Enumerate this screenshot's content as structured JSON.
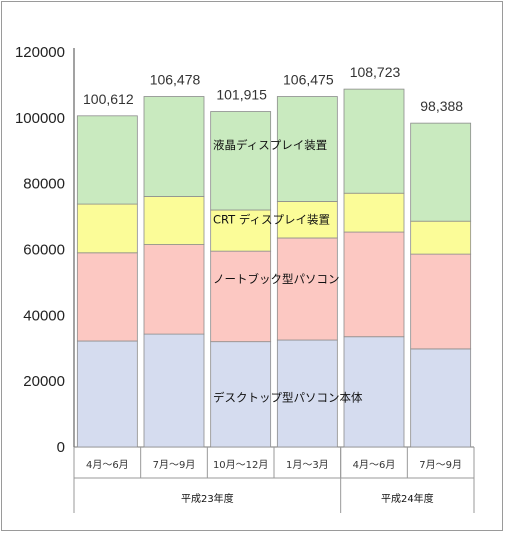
{
  "chart_data": {
    "type": "bar",
    "stacked": true,
    "ylim": [
      0,
      120000
    ],
    "yticks": [
      0,
      20000,
      40000,
      60000,
      80000,
      100000,
      120000
    ],
    "categories": [
      "4月～6月",
      "7月～9月",
      "10月～12月",
      "1月～3月",
      "4月～6月",
      "7月～9月"
    ],
    "category_colors": [
      "#333333",
      "#333333",
      "#333333",
      "#333333",
      "#333333",
      "#e8201a"
    ],
    "groups": [
      {
        "label": "平成23年度",
        "count": 4
      },
      {
        "label": "平成24年度",
        "count": 2
      }
    ],
    "series": [
      {
        "name": "デスクトップ型パソコン本体",
        "color": "#d5dcef",
        "values": [
          32200,
          34300,
          32000,
          32500,
          33500,
          29800
        ]
      },
      {
        "name": "ノートブック型パソコン",
        "color": "#fcc8c2",
        "values": [
          26800,
          27200,
          27500,
          31000,
          31800,
          28800
        ]
      },
      {
        "name": "CRT ディスプレイ装置",
        "color": "#fbfc98",
        "values": [
          14800,
          14600,
          12500,
          11100,
          11800,
          10000
        ]
      },
      {
        "name": "液晶ディスプレイ装置",
        "color": "#c9eabf",
        "values": [
          26812,
          30378,
          29915,
          31875,
          31623,
          29788
        ]
      }
    ],
    "totals": [
      "100,612",
      "106,478",
      "101,915",
      "106,475",
      "108,723",
      "98,388"
    ],
    "total_colors": [
      "#333333",
      "#333333",
      "#333333",
      "#333333",
      "#333333",
      "#e8201a"
    ],
    "grid": false,
    "legend": "inline labels inside bars"
  }
}
